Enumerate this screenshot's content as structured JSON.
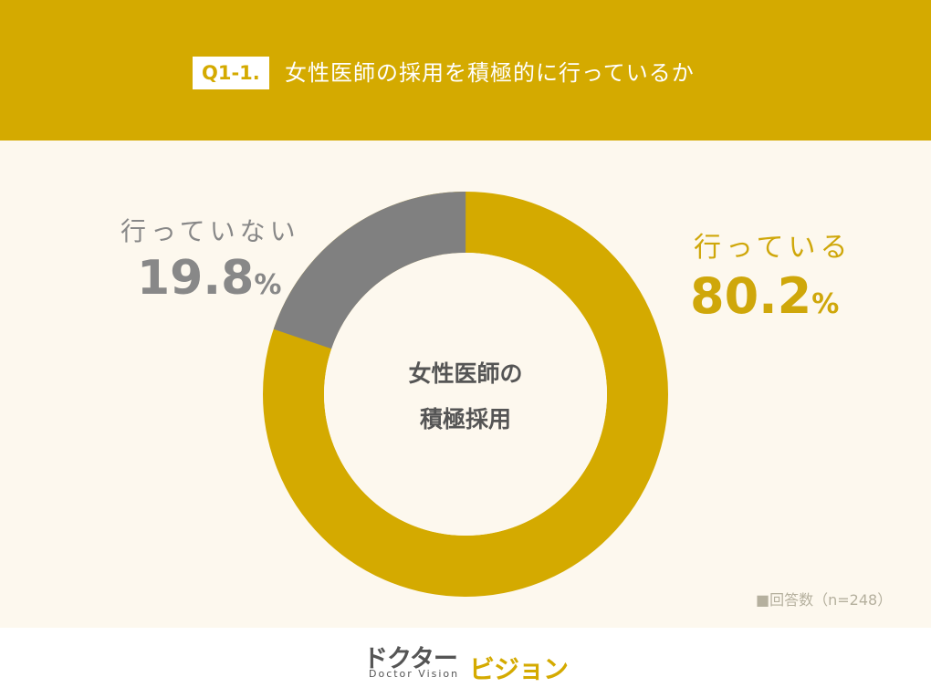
{
  "header": {
    "badge": "Q1-1.",
    "title": "女性医師の採用を積極的に行っているか"
  },
  "chart_data": {
    "type": "pie",
    "title": "女性医師の採用を積極的に行っているか",
    "center_label": [
      "女性医師の",
      "積極採用"
    ],
    "categories": [
      "行っている",
      "行っていない"
    ],
    "values": [
      80.2,
      19.8
    ],
    "unit": "%",
    "colors": [
      "#D4AA00",
      "#808080"
    ],
    "donut": true,
    "sample_size": 248
  },
  "labels": {
    "left_category": "行っていない",
    "left_value": "19.8",
    "right_category": "行っている",
    "right_value": "80.2",
    "percent": "%"
  },
  "center": {
    "line1": "女性医師の",
    "line2": "積極採用"
  },
  "note": "■回答数（n=248）",
  "logo": {
    "main": "ドクター",
    "sub": "Doctor Vision",
    "accent": "ビジョン"
  },
  "colors": {
    "brand": "#D4AA00",
    "grey": "#808080",
    "background": "#FDF8EE"
  }
}
